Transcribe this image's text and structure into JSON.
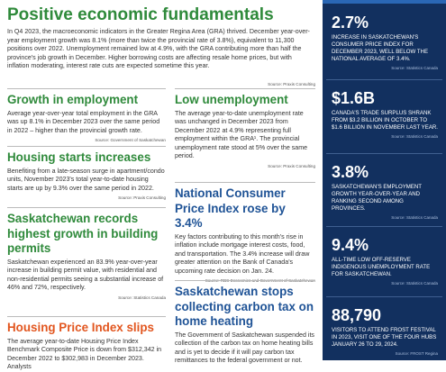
{
  "title": "Positive economic fundamentals",
  "intro": "In Q4 2023, the macroeconomic indicators in the Greater Regina Area (GRA) thrived. December year-over-year employment growth was 8.1% (more than twice the provincial rate of 3.8%), equivalent to 11,300 positions over 2022. Unemployment remained low at 4.9%, with the GRA contributing more than half the province's job growth in December. Higher borrowing costs are affecting resale home prices, but with inflation moderating, interest rate cuts are expected sometime this year.",
  "intro_source": "Source: Praxis Consulting",
  "left_column": [
    {
      "heading": "Growth in employment",
      "color": "#2f8a3b",
      "body": "Average year-over-year total employment in the GRA was up 8.1% in December 2023 over the same period in 2022 – higher than the provincial growth rate.",
      "source": "Source: Government of Saskatchewan"
    },
    {
      "heading": "Housing starts increases",
      "color": "#2f8a3b",
      "body": "Benefiting from a late-season surge in apartment/condo units, November 2023's total year-to-date housing starts are up by 9.3% over the same period in 2022.",
      "source": "Source: Praxis Consulting"
    },
    {
      "heading": "Saskatchewan records highest growth in building permits",
      "color": "#2f8a3b",
      "body": "Saskatchewan experienced an 83.9% year-over-year increase in building permit value, with residential and non-residential permits seeing a substantial increase of 46% and 72%, respectively.",
      "source": "Source: Statistics Canada"
    },
    {
      "heading": "Housing Price Index slips",
      "color": "#e2561f",
      "body": "The average year-to-date Housing Price Index Benchmark Composite Price is down from $312,342 in December 2022 to $302,983 in December 2023. Analysts"
    }
  ],
  "middle_column": [
    {
      "heading": "Low unemployment",
      "color": "#2f8a3b",
      "body": "The average year-to-date unemployment rate was unchanged in December 2023 from December 2022 at 4.9% representing full employment within the GRA¹. The provincial unemployment rate stood at 5% over the same period.",
      "source": "Source: Praxis Consulting"
    },
    {
      "heading": "National Consumer Price Index rose by 3.4%",
      "color": "#1f5396",
      "body": "Key factors contributing to this month's rise in inflation include mortgage interest costs, food, and transportation. The 3.4% increase will draw greater attention on the Bank of Canada's upcoming rate decision on Jan. 24.",
      "source": "Source: RBC Economics and Government of Saskatchewan"
    },
    {
      "heading": "Saskatchewan stops collecting carbon tax on home heating",
      "color": "#1f5396",
      "body": "The Government of Saskatchewan suspended its collection of the carbon tax on home heating bills and is yet to decide if it will pay carbon tax remittances to the federal government or not."
    }
  ],
  "sidebar": [
    {
      "stat": "2.7%",
      "caption": "INCREASE IN SASKATCHEWAN'S CONSUMER PRICE INDEX FOR DECEMBER 2023, WELL BELOW THE NATIONAL AVERAGE OF 3.4%.",
      "source": "Source: Statistics Canada"
    },
    {
      "stat": "$1.6B",
      "caption": "CANADA'S TRADE SURPLUS SHRANK FROM $3.2 BILLION IN OCTOBER TO $1.6 BILLION IN NOVEMBER LAST YEAR.",
      "source": "Source: Statistics Canada"
    },
    {
      "stat": "3.8%",
      "caption": "SASKATCHEWAN'S EMPLOYMENT GROWTH YEAR-OVER-YEAR AND RANKING SECOND AMONG PROVINCES.",
      "source": "Source: Statistics Canada"
    },
    {
      "stat": "9.4%",
      "caption": "ALL-TIME LOW OFF-RESERVE INDIGENOUS UNEMPLOYMENT RATE FOR SASKATCHEWAN.",
      "source": "Source: Statistics Canada"
    },
    {
      "stat": "88,790",
      "caption": "VISITORS TO ATTEND FROST FESTIVAL IN 2023, VISIT ONE OF THE FOUR HUBS JANUARY 26 TO 29, 2024.",
      "source": "Source: FROST Regina"
    }
  ]
}
